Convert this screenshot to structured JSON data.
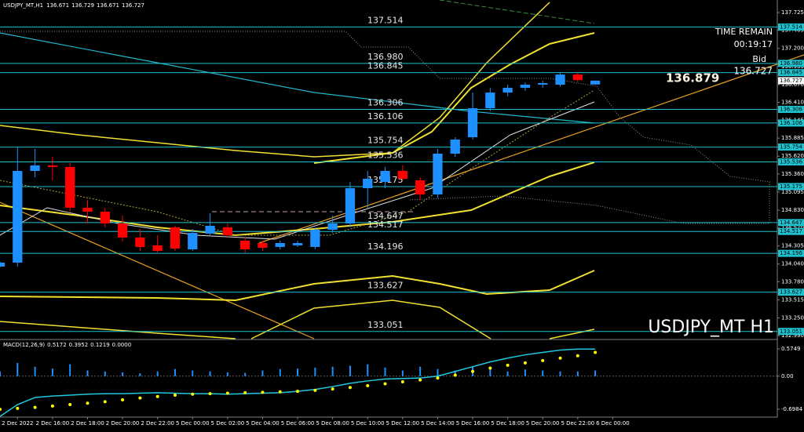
{
  "chart_data": [
    {
      "type": "candlestick",
      "title": "USDJPY_MT,H1",
      "ohlc": [
        136.671,
        136.729,
        136.671,
        136.727
      ],
      "x": [
        0,
        1,
        2,
        3,
        4,
        5,
        6,
        7,
        8,
        9,
        10,
        11,
        12,
        13,
        14,
        15,
        16,
        17,
        18,
        19,
        20,
        21,
        22,
        23,
        24,
        25,
        26,
        27,
        28,
        29,
        30,
        31,
        32,
        33,
        34
      ],
      "open": [
        134.002,
        134.06,
        135.404,
        135.485,
        135.462,
        134.864,
        134.807,
        134.634,
        134.428,
        134.313,
        134.577,
        134.255,
        134.485,
        134.577,
        134.382,
        134.347,
        134.29,
        134.313,
        134.29,
        134.542,
        134.634,
        135.151,
        135.243,
        135.404,
        135.266,
        135.059,
        135.657,
        135.898,
        136.323,
        136.553,
        136.622,
        136.668,
        136.668,
        136.817,
        136.671
      ],
      "close": [
        134.06,
        135.404,
        135.485,
        135.462,
        134.864,
        134.807,
        134.634,
        134.428,
        134.29,
        134.232,
        134.267,
        134.496,
        134.6,
        134.462,
        134.255,
        134.278,
        134.347,
        134.347,
        134.542,
        134.634,
        135.151,
        135.289,
        135.404,
        135.289,
        135.059,
        135.657,
        135.864,
        136.323,
        136.553,
        136.622,
        136.668,
        136.691,
        136.817,
        136.737,
        136.727
      ],
      "high": [
        134.075,
        135.76,
        135.726,
        135.611,
        135.519,
        134.979,
        134.864,
        134.749,
        134.554,
        134.462,
        134.6,
        134.554,
        134.784,
        134.634,
        134.428,
        134.382,
        134.382,
        134.382,
        134.577,
        134.749,
        135.243,
        135.404,
        135.462,
        135.485,
        135.312,
        135.726,
        135.898,
        136.553,
        136.622,
        136.668,
        136.703,
        136.726,
        136.845,
        136.845,
        136.729
      ],
      "low": [
        133.99,
        134.002,
        135.312,
        135.266,
        134.807,
        134.634,
        134.577,
        134.37,
        134.232,
        134.209,
        134.232,
        134.232,
        134.462,
        134.428,
        134.209,
        134.232,
        134.255,
        134.29,
        134.255,
        134.496,
        134.577,
        134.864,
        135.151,
        135.266,
        134.979,
        135.005,
        135.611,
        135.864,
        136.28,
        136.5,
        136.58,
        136.622,
        136.64,
        136.703,
        136.671
      ],
      "up_color": "#1e90ff",
      "down_color": "#ff0000",
      "xlim": [
        0,
        44.4
      ],
      "xticks": [
        {
          "value": 1,
          "label": "2 Dec 2022"
        },
        {
          "value": 3,
          "label": "2 Dec 16:00"
        },
        {
          "value": 5,
          "label": "2 Dec 18:00"
        },
        {
          "value": 7,
          "label": "2 Dec 20:00"
        },
        {
          "value": 9,
          "label": "2 Dec 22:00"
        },
        {
          "value": 11,
          "label": "5 Dec 00:00"
        },
        {
          "value": 13,
          "label": "5 Dec 02:00"
        },
        {
          "value": 15,
          "label": "5 Dec 04:00"
        },
        {
          "value": 17,
          "label": "5 Dec 06:00"
        },
        {
          "value": 19,
          "label": "5 Dec 08:00"
        },
        {
          "value": 21,
          "label": "5 Dec 10:00"
        },
        {
          "value": 23,
          "label": "5 Dec 12:00"
        },
        {
          "value": 25,
          "label": "5 Dec 14:00"
        },
        {
          "value": 27,
          "label": "5 Dec 16:00"
        },
        {
          "value": 29,
          "label": "5 Dec 18:00"
        },
        {
          "value": 31,
          "label": "5 Dec 20:00"
        },
        {
          "value": 33,
          "label": "5 Dec 22:00"
        },
        {
          "value": 35,
          "label": "6 Dec 00:00"
        }
      ],
      "ylim": [
        132.945,
        137.875
      ],
      "yticks": [
        137.725,
        137.465,
        {
          "value": 137.2,
          "label": "137.200"
        },
        136.935,
        {
          "value": 136.67,
          "label": "136.670"
        },
        {
          "value": 136.41,
          "label": "136.410"
        },
        136.145,
        135.885,
        {
          "value": 135.62,
          "label": "135.620"
        },
        {
          "value": 135.36,
          "label": "135.360"
        },
        135.095,
        {
          "value": 134.83,
          "label": "134.830"
        },
        {
          "value": 134.57,
          "label": "134.570"
        },
        134.305,
        {
          "value": 134.04,
          "label": "134.040"
        },
        {
          "value": 133.78,
          "label": "133.780"
        },
        133.515,
        {
          "value": 133.25,
          "label": "133.250"
        },
        {
          "value": 132.99,
          "label": "132.990"
        }
      ],
      "grid": false,
      "levels": [
        137.514,
        {
          "value": 136.98,
          "label": "136.980"
        },
        136.845,
        136.306,
        136.106,
        135.754,
        135.536,
        135.175,
        134.647,
        134.517,
        134.196,
        133.627,
        133.051
      ],
      "level_color": "#1fc3cf",
      "time_remain_label": "TIME REMAIN",
      "time_remain": "00:19:17",
      "bid_label": "Bid",
      "bid": 136.727,
      "price_marker": 136.879,
      "watermark": "USDJPY_MT H1"
    },
    {
      "type": "macd",
      "title": "MACD(12,26,9)",
      "header_values": [
        0.5172,
        0.3952,
        0.1219,
        {
          "value": 0,
          "label": "0.0000"
        }
      ],
      "values": [
        0.1,
        0.28,
        0.2,
        0.16,
        0.25,
        0.12,
        0.1,
        0.08,
        0.06,
        0.1,
        0.15,
        0.12,
        0.1,
        0.08,
        0.07,
        0.12,
        0.15,
        0.16,
        0.18,
        0.2,
        0.22,
        0.25,
        0.18,
        0.12,
        0.2,
        0.15,
        0.12,
        0.2,
        0.18,
        0.1,
        0.14,
        0.12,
        0.1,
        0.1,
        0.12
      ],
      "color": "#1e90ff",
      "signal": [
        -0.7,
        -0.68,
        -0.66,
        -0.63,
        -0.6,
        -0.57,
        -0.54,
        -0.5,
        -0.46,
        -0.43,
        -0.4,
        -0.38,
        -0.37,
        -0.36,
        -0.35,
        -0.34,
        -0.33,
        -0.32,
        -0.3,
        -0.27,
        -0.24,
        -0.2,
        -0.16,
        -0.12,
        -0.08,
        -0.04,
        0.02,
        0.1,
        0.17,
        0.23,
        0.28,
        0.33,
        0.38,
        0.43,
        0.5
      ],
      "signal_color": "#ffff00",
      "main": [
        -0.85,
        -0.6,
        -0.45,
        -0.42,
        -0.4,
        -0.38,
        -0.37,
        -0.37,
        -0.36,
        -0.35,
        -0.36,
        -0.37,
        -0.37,
        -0.38,
        -0.37,
        -0.36,
        -0.35,
        -0.32,
        -0.28,
        -0.22,
        -0.15,
        -0.1,
        -0.06,
        -0.05,
        -0.04,
        0.0,
        0.1,
        0.2,
        0.3,
        0.38,
        0.45,
        0.5,
        0.55,
        0.57,
        0.57
      ],
      "main_color": "#20c8e0",
      "ylim": [
        -0.864,
        0.724
      ],
      "yticks": [
        0.5749,
        {
          "value": 0,
          "label": "0.00"
        },
        -0.6984
      ]
    }
  ]
}
